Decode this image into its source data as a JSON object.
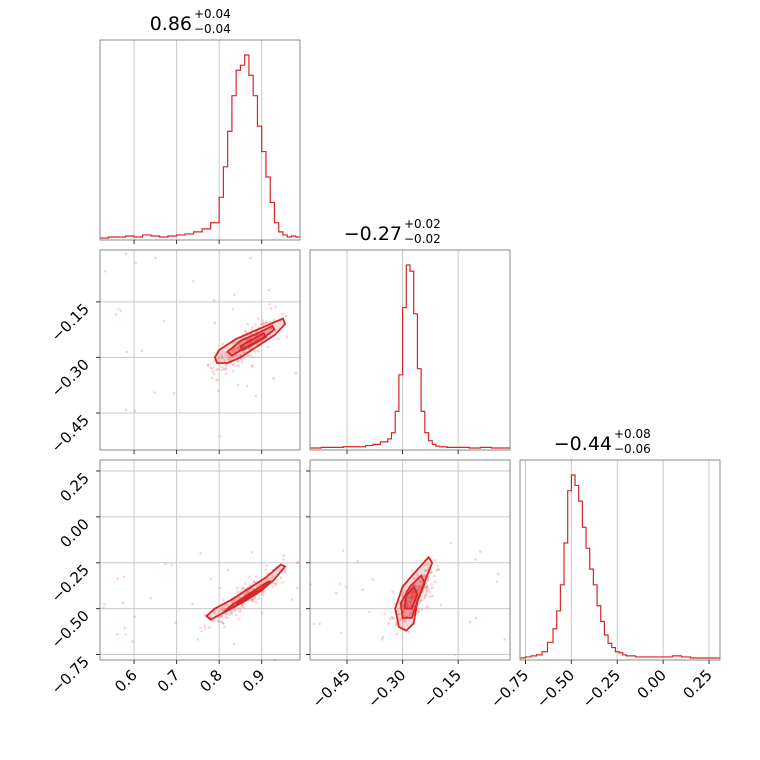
{
  "chart_data": {
    "type": "corner",
    "color": "#d62728",
    "parameters": [
      {
        "median": "0.86",
        "plus": "+0.04",
        "minus": "−0.04",
        "range": [
          0.52,
          0.99
        ],
        "ticks": [
          0.6,
          0.7,
          0.8,
          0.9
        ],
        "tick_labels": [
          "0.6",
          "0.7",
          "0.8",
          "0.9"
        ],
        "hist": {
          "bins": [
            0.52,
            0.54,
            0.56,
            0.58,
            0.6,
            0.62,
            0.64,
            0.66,
            0.68,
            0.7,
            0.72,
            0.74,
            0.76,
            0.78,
            0.8,
            0.81,
            0.82,
            0.83,
            0.84,
            0.85,
            0.86,
            0.87,
            0.88,
            0.89,
            0.9,
            0.91,
            0.92,
            0.93,
            0.94,
            0.95,
            0.96,
            0.97,
            0.98,
            0.99
          ],
          "counts": [
            0,
            1,
            1,
            2,
            1,
            3,
            2,
            1,
            2,
            3,
            4,
            6,
            9,
            15,
            40,
            70,
            105,
            140,
            165,
            170,
            180,
            160,
            140,
            110,
            85,
            60,
            35,
            15,
            6,
            3,
            1,
            2,
            1
          ]
        }
      },
      {
        "median": "−0.27",
        "plus": "+0.02",
        "minus": "−0.02",
        "range": [
          -0.55,
          -0.01
        ],
        "ticks": [
          -0.45,
          -0.3,
          -0.15
        ],
        "tick_labels": [
          "−0.45",
          "−0.30",
          "−0.15"
        ],
        "hist": {
          "bins": [
            -0.55,
            -0.52,
            -0.49,
            -0.46,
            -0.43,
            -0.4,
            -0.38,
            -0.36,
            -0.34,
            -0.33,
            -0.32,
            -0.31,
            -0.3,
            -0.29,
            -0.28,
            -0.27,
            -0.26,
            -0.25,
            -0.24,
            -0.23,
            -0.22,
            -0.21,
            -0.2,
            -0.18,
            -0.15,
            -0.12,
            -0.09,
            -0.06,
            -0.03,
            -0.01
          ],
          "counts": [
            0,
            1,
            1,
            2,
            2,
            4,
            6,
            10,
            15,
            25,
            60,
            120,
            230,
            300,
            290,
            220,
            130,
            60,
            25,
            12,
            6,
            3,
            2,
            1,
            1,
            0,
            1,
            0,
            0
          ]
        }
      },
      {
        "median": "−0.44",
        "plus": "+0.08",
        "minus": "−0.06",
        "range": [
          -0.78,
          0.31
        ],
        "ticks": [
          -0.75,
          -0.5,
          -0.25,
          0.0,
          0.25
        ],
        "tick_labels": [
          "−0.75",
          "−0.50",
          "−0.25",
          "0.00",
          "0.25"
        ],
        "hist": {
          "bins": [
            -0.78,
            -0.75,
            -0.72,
            -0.69,
            -0.66,
            -0.63,
            -0.6,
            -0.58,
            -0.56,
            -0.54,
            -0.52,
            -0.5,
            -0.48,
            -0.46,
            -0.44,
            -0.42,
            -0.4,
            -0.38,
            -0.36,
            -0.34,
            -0.32,
            -0.3,
            -0.28,
            -0.26,
            -0.24,
            -0.22,
            -0.2,
            -0.15,
            -0.1,
            -0.05,
            0.0,
            0.05,
            0.1,
            0.15,
            0.2,
            0.31
          ],
          "counts": [
            0,
            1,
            2,
            3,
            6,
            15,
            28,
            45,
            70,
            110,
            160,
            175,
            165,
            150,
            125,
            105,
            85,
            70,
            50,
            35,
            22,
            14,
            10,
            6,
            5,
            3,
            2,
            1,
            1,
            1,
            1,
            2,
            1,
            0,
            0
          ]
        }
      }
    ],
    "pairs": [
      {
        "row": 1,
        "col": 0,
        "contours": [
          [
            [
              0.79,
              -0.3
            ],
            [
              0.8,
              -0.28
            ],
            [
              0.84,
              -0.25
            ],
            [
              0.89,
              -0.225
            ],
            [
              0.93,
              -0.205
            ],
            [
              0.95,
              -0.195
            ],
            [
              0.955,
              -0.21
            ],
            [
              0.93,
              -0.24
            ],
            [
              0.89,
              -0.27
            ],
            [
              0.85,
              -0.3
            ],
            [
              0.82,
              -0.315
            ],
            [
              0.795,
              -0.315
            ]
          ],
          [
            [
              0.82,
              -0.285
            ],
            [
              0.85,
              -0.255
            ],
            [
              0.89,
              -0.235
            ],
            [
              0.925,
              -0.215
            ],
            [
              0.93,
              -0.225
            ],
            [
              0.9,
              -0.25
            ],
            [
              0.86,
              -0.275
            ],
            [
              0.83,
              -0.295
            ]
          ],
          [
            [
              0.85,
              -0.27
            ],
            [
              0.88,
              -0.25
            ],
            [
              0.905,
              -0.235
            ],
            [
              0.91,
              -0.245
            ],
            [
              0.88,
              -0.265
            ],
            [
              0.855,
              -0.28
            ]
          ]
        ]
      },
      {
        "row": 2,
        "col": 0,
        "contours": [
          [
            [
              0.78,
              -0.56
            ],
            [
              0.82,
              -0.51
            ],
            [
              0.86,
              -0.46
            ],
            [
              0.9,
              -0.4
            ],
            [
              0.93,
              -0.34
            ],
            [
              0.955,
              -0.27
            ],
            [
              0.945,
              -0.26
            ],
            [
              0.91,
              -0.33
            ],
            [
              0.87,
              -0.39
            ],
            [
              0.83,
              -0.45
            ],
            [
              0.79,
              -0.5
            ],
            [
              0.77,
              -0.54
            ]
          ],
          [
            [
              0.81,
              -0.52
            ],
            [
              0.85,
              -0.47
            ],
            [
              0.89,
              -0.41
            ],
            [
              0.92,
              -0.35
            ],
            [
              0.91,
              -0.36
            ],
            [
              0.87,
              -0.42
            ],
            [
              0.83,
              -0.48
            ]
          ],
          [
            [
              0.84,
              -0.48
            ],
            [
              0.87,
              -0.44
            ],
            [
              0.89,
              -0.4
            ],
            [
              0.88,
              -0.41
            ],
            [
              0.855,
              -0.45
            ]
          ]
        ]
      },
      {
        "row": 2,
        "col": 1,
        "contours": [
          [
            [
              -0.31,
              -0.6
            ],
            [
              -0.32,
              -0.5
            ],
            [
              -0.3,
              -0.38
            ],
            [
              -0.27,
              -0.31
            ],
            [
              -0.23,
              -0.22
            ],
            [
              -0.22,
              -0.25
            ],
            [
              -0.24,
              -0.35
            ],
            [
              -0.26,
              -0.46
            ],
            [
              -0.27,
              -0.58
            ],
            [
              -0.29,
              -0.62
            ]
          ],
          [
            [
              -0.3,
              -0.55
            ],
            [
              -0.305,
              -0.47
            ],
            [
              -0.28,
              -0.38
            ],
            [
              -0.25,
              -0.32
            ],
            [
              -0.24,
              -0.36
            ],
            [
              -0.26,
              -0.46
            ],
            [
              -0.275,
              -0.55
            ]
          ],
          [
            [
              -0.295,
              -0.5
            ],
            [
              -0.29,
              -0.43
            ],
            [
              -0.27,
              -0.38
            ],
            [
              -0.26,
              -0.42
            ],
            [
              -0.275,
              -0.5
            ]
          ]
        ]
      }
    ]
  }
}
